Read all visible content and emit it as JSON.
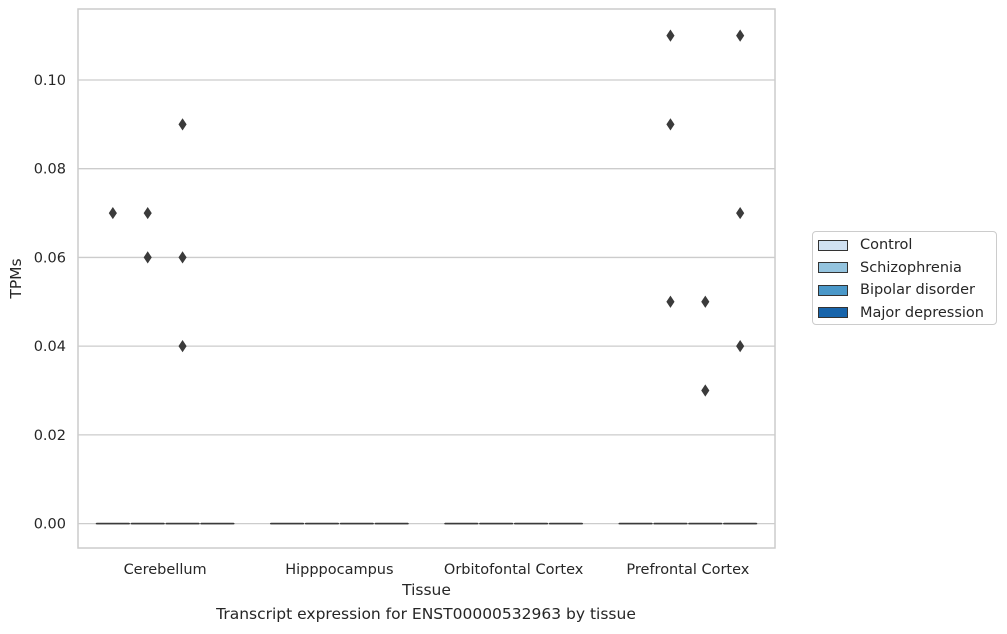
{
  "caption": "Transcript expression for ENST00000532963 by tissue",
  "colors": {
    "grid": "#cccccc",
    "spine": "#cccccc",
    "text": "#262626",
    "outlier": "#3b3b3b",
    "median": "#3b3b3b"
  },
  "chart_data": {
    "type": "box",
    "xlabel": "Tissue",
    "ylabel": "TPMs",
    "ylim": [
      -0.0055,
      0.116
    ],
    "yticks": [
      0.0,
      0.02,
      0.04,
      0.06,
      0.08,
      0.1
    ],
    "ytick_labels": [
      "0.00",
      "0.02",
      "0.04",
      "0.06",
      "0.08",
      "0.10"
    ],
    "grid": true,
    "legend_position": "right, outside",
    "categories": [
      "Cerebellum",
      "Hipppocampus",
      "Orbitofontal Cortex",
      "Prefrontal Cortex"
    ],
    "series": [
      {
        "name": "Control",
        "color": "#d0e1f2",
        "boxes": [
          {
            "category": "Cerebellum",
            "median": 0.0,
            "q1": 0.0,
            "q3": 0.0,
            "outliers": [
              0.07
            ]
          },
          {
            "category": "Hipppocampus",
            "median": 0.0,
            "q1": 0.0,
            "q3": 0.0,
            "outliers": []
          },
          {
            "category": "Orbitofontal Cortex",
            "median": 0.0,
            "q1": 0.0,
            "q3": 0.0,
            "outliers": []
          },
          {
            "category": "Prefrontal Cortex",
            "median": 0.0,
            "q1": 0.0,
            "q3": 0.0,
            "outliers": []
          }
        ]
      },
      {
        "name": "Schizophrenia",
        "color": "#94c4df",
        "boxes": [
          {
            "category": "Cerebellum",
            "median": 0.0,
            "q1": 0.0,
            "q3": 0.0,
            "outliers": [
              0.07,
              0.06
            ]
          },
          {
            "category": "Hipppocampus",
            "median": 0.0,
            "q1": 0.0,
            "q3": 0.0,
            "outliers": []
          },
          {
            "category": "Orbitofontal Cortex",
            "median": 0.0,
            "q1": 0.0,
            "q3": 0.0,
            "outliers": []
          },
          {
            "category": "Prefrontal Cortex",
            "median": 0.0,
            "q1": 0.0,
            "q3": 0.0,
            "outliers": [
              0.11,
              0.09,
              0.05
            ]
          }
        ]
      },
      {
        "name": "Bipolar disorder",
        "color": "#4a98c9",
        "boxes": [
          {
            "category": "Cerebellum",
            "median": 0.0,
            "q1": 0.0,
            "q3": 0.0,
            "outliers": [
              0.09,
              0.06,
              0.04
            ]
          },
          {
            "category": "Hipppocampus",
            "median": 0.0,
            "q1": 0.0,
            "q3": 0.0,
            "outliers": []
          },
          {
            "category": "Orbitofontal Cortex",
            "median": 0.0,
            "q1": 0.0,
            "q3": 0.0,
            "outliers": []
          },
          {
            "category": "Prefrontal Cortex",
            "median": 0.0,
            "q1": 0.0,
            "q3": 0.0,
            "outliers": [
              0.05,
              0.03
            ]
          }
        ]
      },
      {
        "name": "Major depression",
        "color": "#1764ab",
        "boxes": [
          {
            "category": "Cerebellum",
            "median": 0.0,
            "q1": 0.0,
            "q3": 0.0,
            "outliers": []
          },
          {
            "category": "Hipppocampus",
            "median": 0.0,
            "q1": 0.0,
            "q3": 0.0,
            "outliers": []
          },
          {
            "category": "Orbitofontal Cortex",
            "median": 0.0,
            "q1": 0.0,
            "q3": 0.0,
            "outliers": []
          },
          {
            "category": "Prefrontal Cortex",
            "median": 0.0,
            "q1": 0.0,
            "q3": 0.0,
            "outliers": [
              0.11,
              0.07,
              0.04
            ]
          }
        ]
      }
    ]
  }
}
